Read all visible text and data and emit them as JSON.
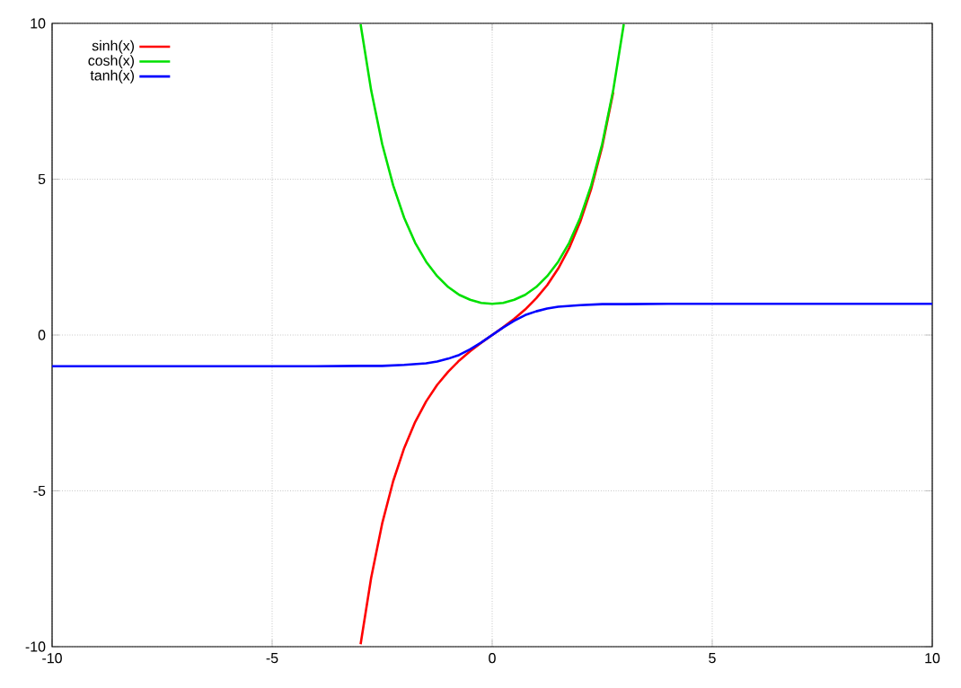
{
  "chart_data": {
    "type": "line",
    "xlim": [
      -10,
      10
    ],
    "ylim": [
      -10,
      10
    ],
    "xticks": [
      -10,
      -5,
      0,
      5,
      10
    ],
    "yticks": [
      -10,
      -5,
      0,
      5,
      10
    ],
    "grid": true,
    "legend": "top left",
    "series": [
      {
        "name": "sinh(x)",
        "color": "#ff0000",
        "x": [
          -2.99,
          -2.75,
          -2.5,
          -2.25,
          -2,
          -1.75,
          -1.5,
          -1.25,
          -1,
          -0.75,
          -0.5,
          -0.25,
          0,
          0.25,
          0.5,
          0.75,
          1,
          1.25,
          1.5,
          1.75,
          2,
          2.25,
          2.5,
          2.75
        ],
        "values": [
          -9.92,
          -7.79,
          -6.05,
          -4.69,
          -3.63,
          -2.79,
          -2.13,
          -1.6,
          -1.18,
          -0.82,
          -0.52,
          -0.25,
          0,
          0.25,
          0.52,
          0.82,
          1.18,
          1.6,
          2.13,
          2.79,
          3.63,
          4.69,
          6.05,
          7.79
        ]
      },
      {
        "name": "cosh(x)",
        "color": "#00e000",
        "x": [
          -2.99,
          -2.75,
          -2.5,
          -2.25,
          -2,
          -1.75,
          -1.5,
          -1.25,
          -1,
          -0.75,
          -0.5,
          -0.25,
          0,
          0.25,
          0.5,
          0.75,
          1,
          1.25,
          1.5,
          1.75,
          2,
          2.25,
          2.5,
          2.75,
          2.99
        ],
        "values": [
          9.97,
          7.85,
          6.13,
          4.8,
          3.76,
          2.96,
          2.35,
          1.89,
          1.54,
          1.29,
          1.13,
          1.03,
          1,
          1.03,
          1.13,
          1.29,
          1.54,
          1.89,
          2.35,
          2.96,
          3.76,
          4.8,
          6.13,
          7.85,
          9.97
        ]
      },
      {
        "name": "tanh(x)",
        "color": "#0000ff",
        "x": [
          -10,
          -6,
          -4,
          -3,
          -2.5,
          -2,
          -1.5,
          -1.25,
          -1,
          -0.75,
          -0.5,
          -0.25,
          0,
          0.25,
          0.5,
          0.75,
          1,
          1.25,
          1.5,
          2,
          2.5,
          3,
          4,
          6,
          10
        ],
        "values": [
          -1,
          -1,
          -1,
          -0.99,
          -0.99,
          -0.96,
          -0.91,
          -0.85,
          -0.76,
          -0.64,
          -0.46,
          -0.24,
          0,
          0.24,
          0.46,
          0.64,
          0.76,
          0.85,
          0.91,
          0.96,
          0.99,
          0.99,
          1,
          1,
          1
        ]
      }
    ]
  }
}
